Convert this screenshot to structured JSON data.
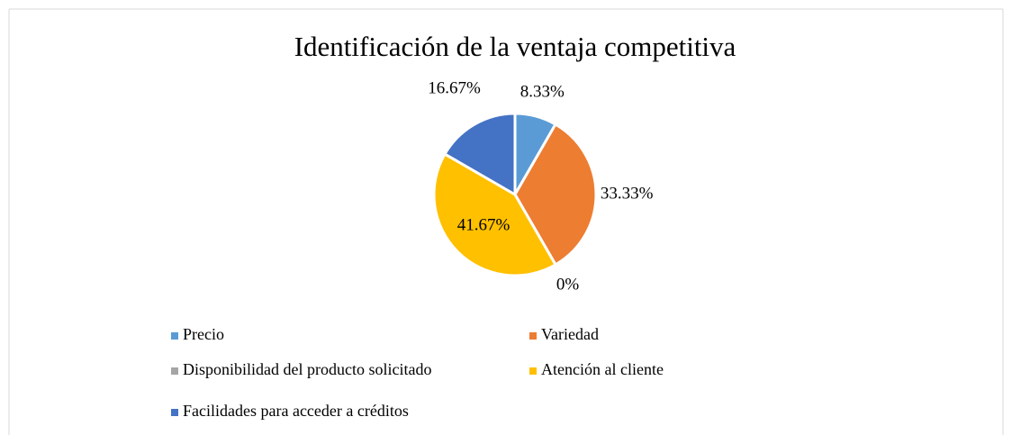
{
  "chart_data": {
    "type": "pie",
    "title": "Identificación de la ventaja competitiva",
    "categories": [
      "Precio",
      "Variedad",
      "Disponibilidad del producto solicitado",
      "Atención al cliente",
      "Facilidades para acceder a créditos"
    ],
    "values": [
      8.33,
      33.33,
      0,
      41.67,
      16.67
    ],
    "value_labels": [
      "8.33%",
      "33.33%",
      "0%",
      "41.67%",
      "16.67%"
    ],
    "colors": [
      "#5b9bd5",
      "#ed7d31",
      "#a5a5a5",
      "#ffc000",
      "#4472c4"
    ],
    "legend": "bottom"
  }
}
